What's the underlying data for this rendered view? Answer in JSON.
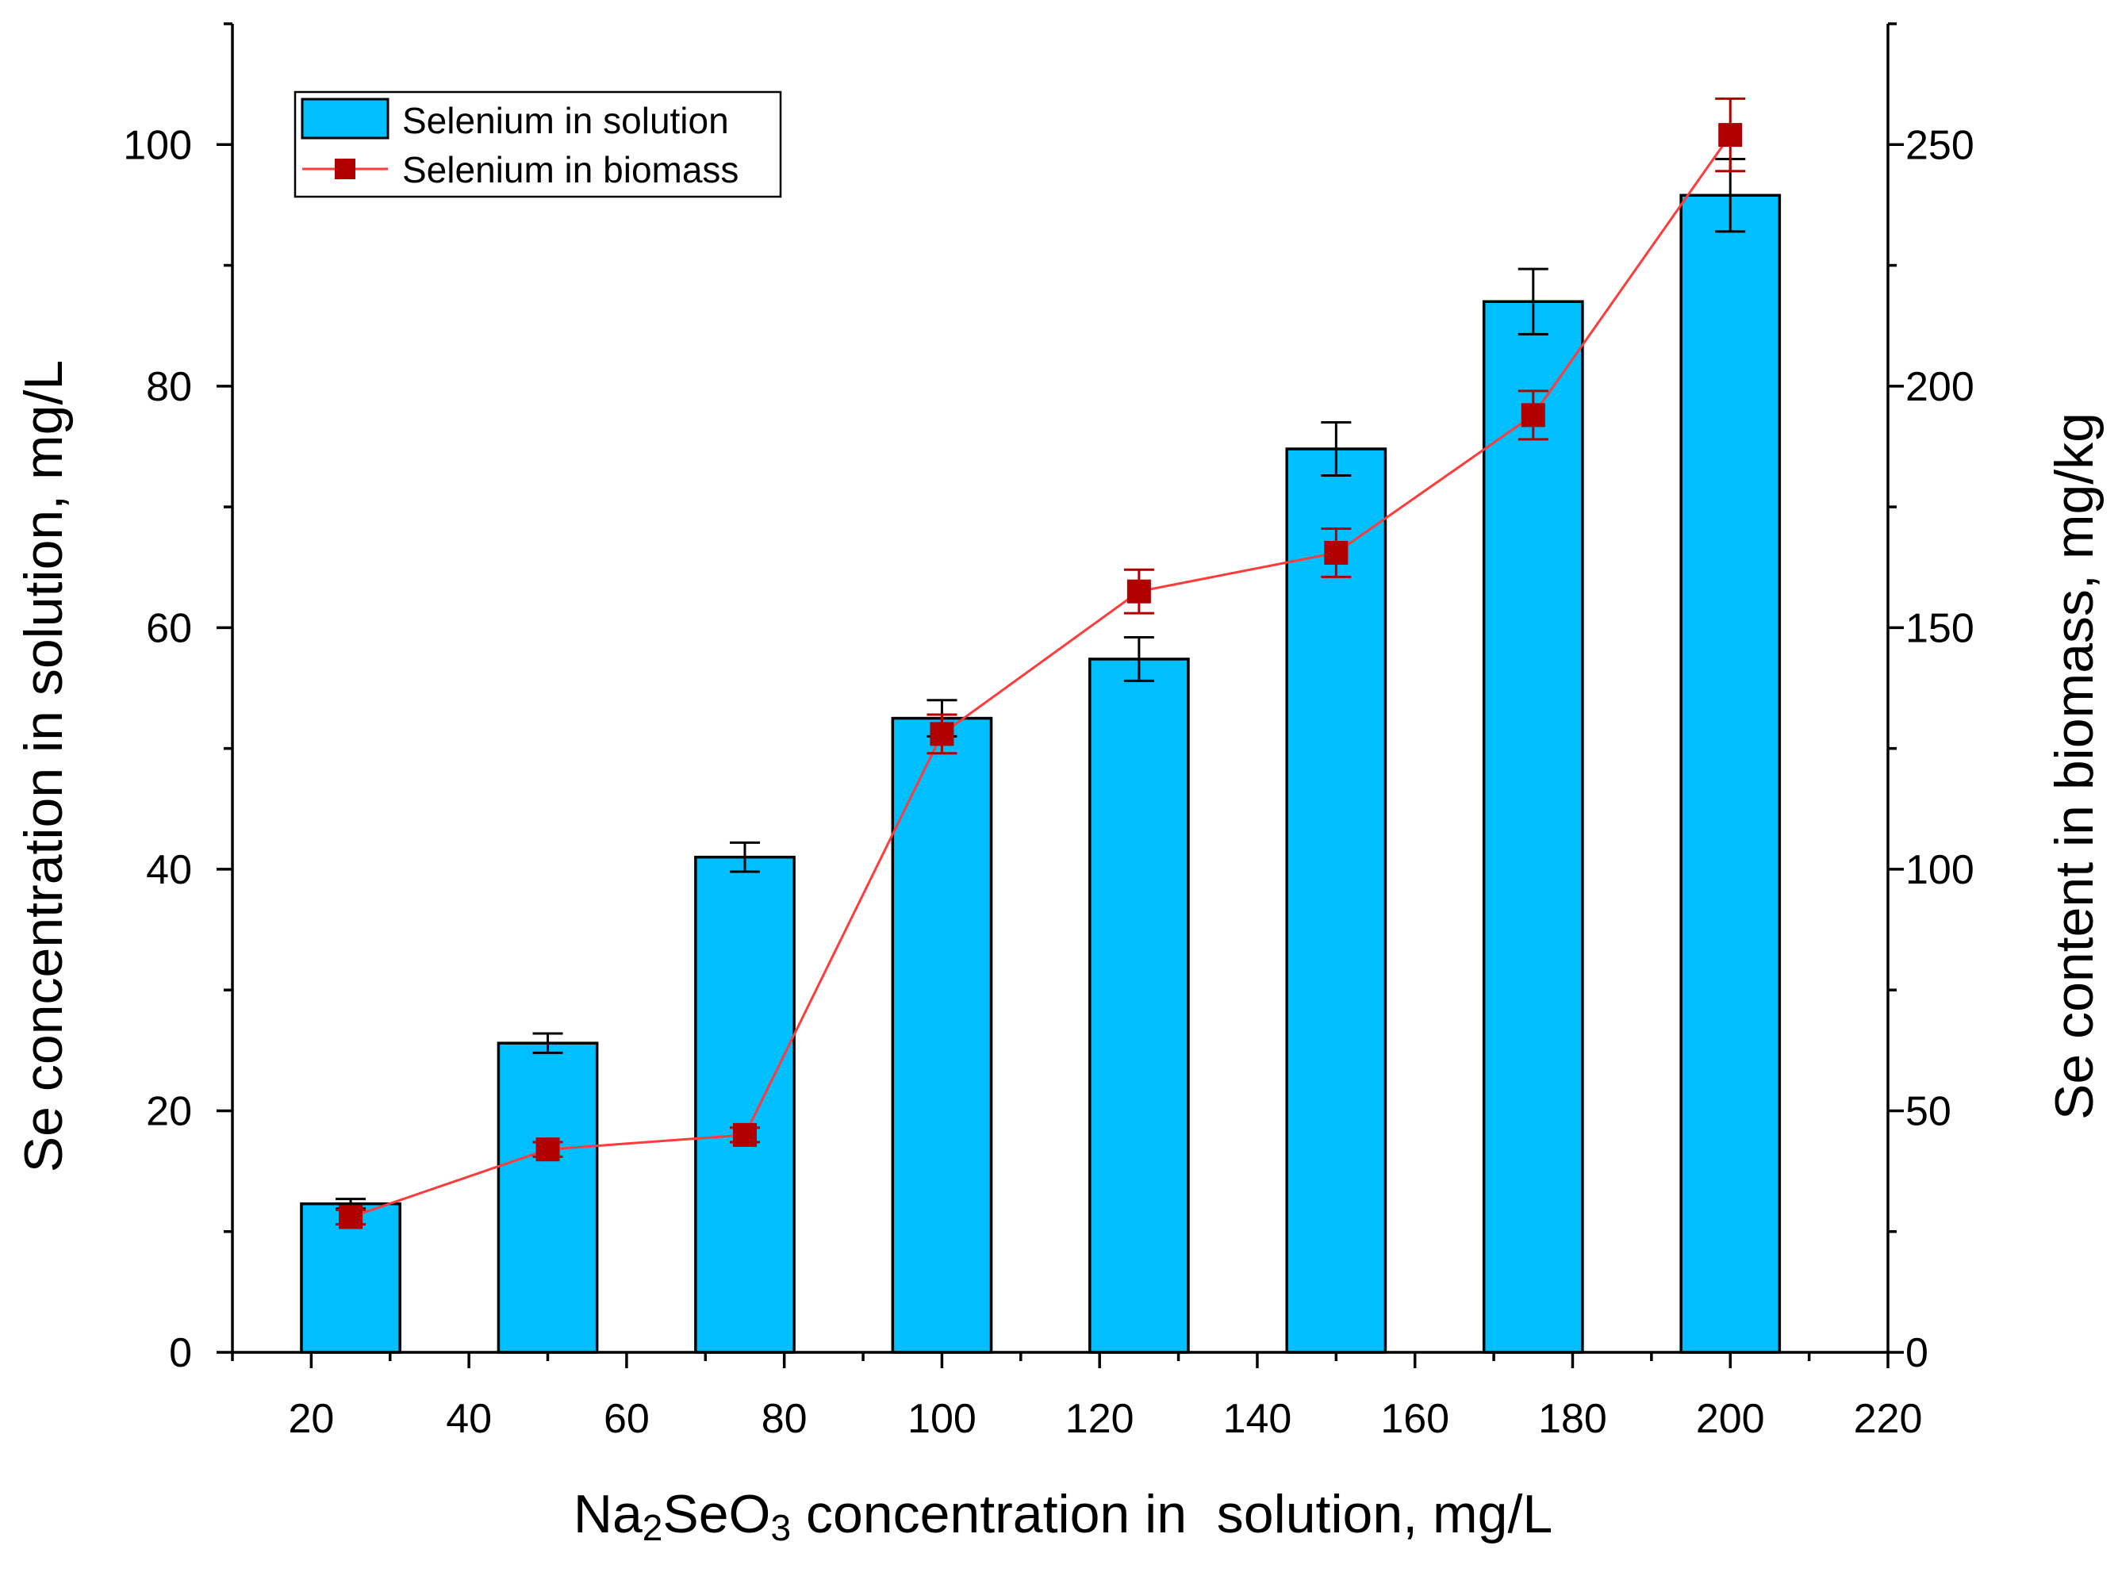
{
  "chart_data": {
    "type": "bar+line",
    "x_axis": {
      "title_parts": [
        "Na",
        "2",
        "SeO",
        "3",
        " concentration in  solution, mg/L"
      ],
      "xlim": [
        10,
        220
      ],
      "major_ticks": [
        20,
        40,
        60,
        80,
        100,
        120,
        140,
        160,
        180,
        200,
        220
      ],
      "minor_ticks": [
        10,
        30,
        50,
        70,
        90,
        110,
        130,
        150,
        170,
        190,
        210
      ]
    },
    "y_left": {
      "title": "Se concentration in solution, mg/L",
      "ylim": [
        0,
        110
      ],
      "major_ticks": [
        0,
        20,
        40,
        60,
        80,
        100
      ],
      "minor_ticks": [
        10,
        30,
        50,
        70,
        90,
        110
      ]
    },
    "y_right": {
      "title": "Se content in biomass, mg/kg",
      "ylim": [
        0,
        275
      ],
      "major_ticks": [
        0,
        50,
        100,
        150,
        200,
        250
      ],
      "minor_ticks": [
        25,
        75,
        125,
        175,
        225,
        275
      ]
    },
    "series": [
      {
        "name": "Selenium in solution",
        "type": "bar",
        "axis": "left",
        "color": "#00BFFF",
        "x": [
          25,
          50,
          75,
          100,
          125,
          150,
          175,
          200
        ],
        "values": [
          12.3,
          25.6,
          41.0,
          52.5,
          57.4,
          74.8,
          87.0,
          95.8
        ],
        "errors": [
          0.4,
          0.8,
          1.2,
          1.5,
          1.8,
          2.2,
          2.7,
          3.0
        ]
      },
      {
        "name": "Selenium in biomass",
        "type": "line",
        "axis": "right",
        "color": "#B00000",
        "line_color": "#FF3B3B",
        "x": [
          25,
          50,
          75,
          100,
          125,
          150,
          175,
          200
        ],
        "values": [
          28,
          42,
          45,
          128,
          157.5,
          165.5,
          194,
          252
        ],
        "errors": [
          1.5,
          1.5,
          1.5,
          4,
          4.5,
          5,
          5,
          7.5
        ]
      }
    ],
    "legend_position": "top-left"
  }
}
